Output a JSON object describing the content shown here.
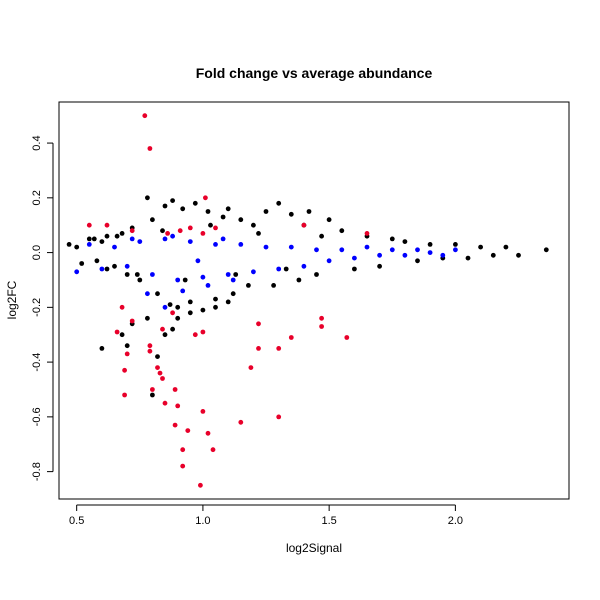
{
  "chart_data": {
    "type": "scatter",
    "title": "Fold change vs average abundance",
    "xlabel": "log2Signal",
    "ylabel": "log2FC",
    "xlim": [
      0.43,
      2.45
    ],
    "ylim": [
      -0.9,
      0.55
    ],
    "x_ticks": [
      0.5,
      1.0,
      1.5,
      2.0
    ],
    "x_tick_labels": [
      "0.5",
      "1.0",
      "1.5",
      "2.0"
    ],
    "y_ticks": [
      -0.8,
      -0.6,
      -0.4,
      -0.2,
      0.0,
      0.2,
      0.4
    ],
    "y_tick_labels": [
      "-0.8",
      "-0.6",
      "-0.4",
      "-0.2",
      "0.0",
      "0.2",
      "0.4"
    ],
    "grid": false,
    "legend": "none",
    "colors": {
      "black": "#000000",
      "blue": "#0000ff",
      "red": "#e8002a"
    },
    "series": [
      {
        "color": "#000000",
        "points": [
          [
            0.55,
            0.05
          ],
          [
            0.58,
            -0.03
          ],
          [
            0.6,
            0.04
          ],
          [
            0.62,
            0.06
          ],
          [
            0.65,
            -0.05
          ],
          [
            0.68,
            0.07
          ],
          [
            0.7,
            -0.08
          ],
          [
            0.72,
            0.09
          ],
          [
            0.75,
            -0.1
          ],
          [
            0.78,
            0.2
          ],
          [
            0.8,
            0.12
          ],
          [
            0.82,
            -0.15
          ],
          [
            0.85,
            0.17
          ],
          [
            0.87,
            -0.19
          ],
          [
            0.88,
            0.19
          ],
          [
            0.9,
            -0.2
          ],
          [
            0.92,
            0.16
          ],
          [
            0.95,
            -0.18
          ],
          [
            0.97,
            0.18
          ],
          [
            1.0,
            -0.21
          ],
          [
            1.02,
            0.15
          ],
          [
            1.05,
            -0.17
          ],
          [
            1.08,
            0.13
          ],
          [
            1.1,
            0.16
          ],
          [
            1.12,
            -0.15
          ],
          [
            1.15,
            0.12
          ],
          [
            1.18,
            -0.12
          ],
          [
            1.2,
            0.1
          ],
          [
            1.25,
            0.15
          ],
          [
            1.28,
            -0.12
          ],
          [
            1.3,
            0.18
          ],
          [
            1.35,
            0.14
          ],
          [
            1.38,
            -0.1
          ],
          [
            1.4,
            0.1
          ],
          [
            1.42,
            0.15
          ],
          [
            1.45,
            -0.08
          ],
          [
            1.5,
            0.12
          ],
          [
            1.55,
            0.08
          ],
          [
            1.6,
            -0.06
          ],
          [
            1.65,
            0.06
          ],
          [
            1.7,
            -0.05
          ],
          [
            1.75,
            0.05
          ],
          [
            1.8,
            0.04
          ],
          [
            1.85,
            -0.03
          ],
          [
            1.9,
            0.03
          ],
          [
            1.95,
            -0.02
          ],
          [
            2.0,
            0.03
          ],
          [
            2.05,
            -0.02
          ],
          [
            2.1,
            0.02
          ],
          [
            2.15,
            -0.01
          ],
          [
            2.2,
            0.02
          ],
          [
            2.25,
            -0.01
          ],
          [
            2.36,
            0.01
          ],
          [
            0.6,
            -0.35
          ],
          [
            0.68,
            -0.3
          ],
          [
            0.7,
            -0.34
          ],
          [
            0.72,
            -0.26
          ],
          [
            0.78,
            -0.24
          ],
          [
            0.82,
            -0.38
          ],
          [
            0.85,
            -0.3
          ],
          [
            0.8,
            -0.52
          ],
          [
            0.88,
            -0.28
          ],
          [
            0.9,
            -0.24
          ],
          [
            0.95,
            -0.22
          ],
          [
            1.05,
            -0.2
          ],
          [
            1.1,
            -0.18
          ],
          [
            0.47,
            0.03
          ],
          [
            0.5,
            0.02
          ],
          [
            0.52,
            -0.04
          ],
          [
            0.57,
            0.05
          ],
          [
            0.62,
            -0.06
          ],
          [
            0.66,
            0.06
          ],
          [
            0.74,
            -0.08
          ],
          [
            0.84,
            0.08
          ],
          [
            0.93,
            -0.1
          ],
          [
            1.03,
            0.1
          ],
          [
            1.13,
            -0.08
          ],
          [
            1.22,
            0.07
          ],
          [
            1.33,
            -0.06
          ],
          [
            1.47,
            0.06
          ]
        ]
      },
      {
        "color": "#0000ff",
        "points": [
          [
            0.5,
            -0.07
          ],
          [
            0.55,
            0.03
          ],
          [
            0.6,
            -0.06
          ],
          [
            0.65,
            0.02
          ],
          [
            0.7,
            -0.05
          ],
          [
            0.75,
            0.04
          ],
          [
            0.8,
            -0.08
          ],
          [
            0.85,
            0.05
          ],
          [
            0.9,
            -0.1
          ],
          [
            0.95,
            0.04
          ],
          [
            1.0,
            -0.09
          ],
          [
            1.05,
            0.03
          ],
          [
            1.1,
            -0.08
          ],
          [
            1.15,
            0.03
          ],
          [
            1.2,
            -0.07
          ],
          [
            1.25,
            0.02
          ],
          [
            1.3,
            -0.06
          ],
          [
            1.35,
            0.02
          ],
          [
            1.4,
            -0.05
          ],
          [
            1.45,
            0.01
          ],
          [
            1.5,
            -0.03
          ],
          [
            1.55,
            0.01
          ],
          [
            1.6,
            -0.02
          ],
          [
            1.65,
            0.02
          ],
          [
            1.7,
            -0.01
          ],
          [
            1.75,
            0.01
          ],
          [
            1.8,
            -0.01
          ],
          [
            1.85,
            0.01
          ],
          [
            1.9,
            0.0
          ],
          [
            1.95,
            -0.01
          ],
          [
            2.0,
            0.01
          ],
          [
            0.78,
            -0.15
          ],
          [
            0.85,
            -0.2
          ],
          [
            0.92,
            -0.14
          ],
          [
            1.02,
            -0.12
          ],
          [
            1.12,
            -0.1
          ],
          [
            0.72,
            0.05
          ],
          [
            0.88,
            0.06
          ],
          [
            0.98,
            -0.03
          ],
          [
            1.08,
            0.05
          ]
        ]
      },
      {
        "color": "#e8002a",
        "points": [
          [
            0.77,
            0.5
          ],
          [
            0.79,
            0.38
          ],
          [
            0.55,
            0.1
          ],
          [
            0.62,
            0.1
          ],
          [
            0.72,
            0.08
          ],
          [
            0.86,
            0.07
          ],
          [
            0.91,
            0.08
          ],
          [
            0.95,
            0.09
          ],
          [
            1.0,
            0.07
          ],
          [
            1.01,
            0.2
          ],
          [
            1.05,
            0.09
          ],
          [
            1.4,
            0.1
          ],
          [
            1.65,
            0.07
          ],
          [
            0.68,
            -0.2
          ],
          [
            0.72,
            -0.25
          ],
          [
            0.66,
            -0.29
          ],
          [
            0.7,
            -0.37
          ],
          [
            0.69,
            -0.43
          ],
          [
            0.69,
            -0.52
          ],
          [
            0.79,
            -0.34
          ],
          [
            0.79,
            -0.36
          ],
          [
            0.82,
            -0.42
          ],
          [
            0.83,
            -0.44
          ],
          [
            0.84,
            -0.46
          ],
          [
            0.8,
            -0.5
          ],
          [
            0.85,
            -0.55
          ],
          [
            0.89,
            -0.5
          ],
          [
            0.9,
            -0.56
          ],
          [
            0.89,
            -0.63
          ],
          [
            0.92,
            -0.72
          ],
          [
            0.94,
            -0.65
          ],
          [
            0.92,
            -0.78
          ],
          [
            0.99,
            -0.85
          ],
          [
            1.0,
            -0.58
          ],
          [
            1.02,
            -0.66
          ],
          [
            1.04,
            -0.72
          ],
          [
            1.15,
            -0.62
          ],
          [
            1.19,
            -0.42
          ],
          [
            1.22,
            -0.35
          ],
          [
            1.22,
            -0.26
          ],
          [
            1.3,
            -0.6
          ],
          [
            1.3,
            -0.35
          ],
          [
            1.35,
            -0.31
          ],
          [
            1.47,
            -0.24
          ],
          [
            1.47,
            -0.27
          ],
          [
            1.57,
            -0.31
          ],
          [
            1.0,
            -0.29
          ],
          [
            0.97,
            -0.3
          ],
          [
            0.88,
            -0.22
          ],
          [
            0.84,
            -0.28
          ]
        ]
      }
    ]
  }
}
